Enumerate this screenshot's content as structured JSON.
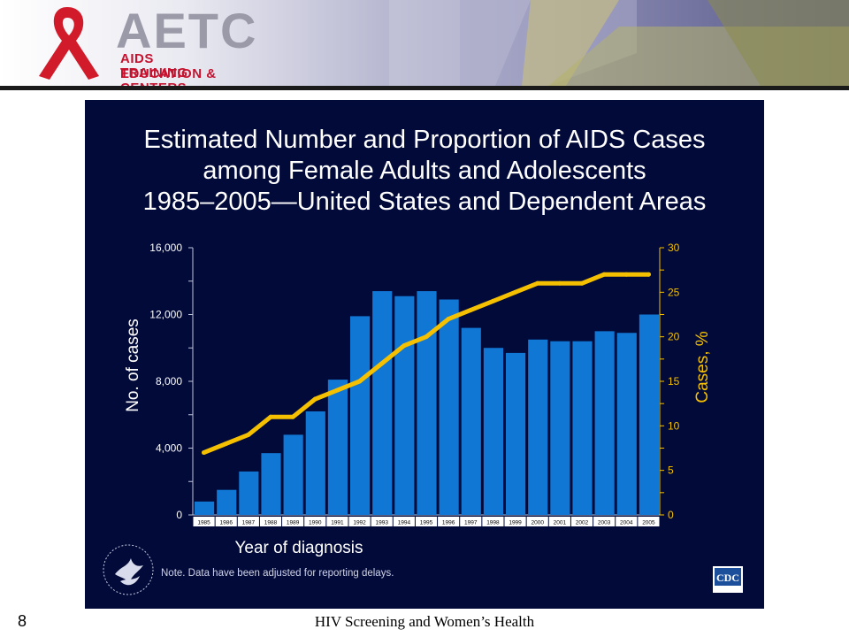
{
  "header": {
    "logo": {
      "name": "AETC",
      "line1": "AIDS EDUCATION &",
      "line2": "TRAINING CENTERS"
    }
  },
  "slide": {
    "title_lines": [
      "Estimated Number and Proportion of AIDS Cases",
      "among Female Adults and Adolescents",
      "1985–2005—United States and Dependent Areas"
    ],
    "note": "Note. Data have been adjusted for reporting delays.",
    "seal_icon": "hhs-eagle-seal-icon",
    "cdc_logo": "CDC"
  },
  "chart_data": {
    "type": "bar",
    "categories": [
      "1985",
      "1986",
      "1987",
      "1988",
      "1989",
      "1990",
      "1991",
      "1992",
      "1993",
      "1994",
      "1995",
      "1996",
      "1997",
      "1998",
      "1999",
      "2000",
      "2001",
      "2002",
      "2003",
      "2004",
      "2005"
    ],
    "series": [
      {
        "axis": "left",
        "type": "bar",
        "values": [
          800,
          1500,
          2600,
          3700,
          4800,
          6200,
          8100,
          11900,
          13400,
          13100,
          13400,
          12900,
          11200,
          10000,
          9700,
          10500,
          10400,
          10400,
          11000,
          10900,
          12000
        ],
        "color": "#1177d4"
      },
      {
        "axis": "right",
        "type": "line",
        "values": [
          7,
          8,
          9,
          11,
          11,
          13,
          14,
          15,
          17,
          19,
          20,
          22,
          23,
          24,
          25,
          26,
          26,
          26,
          27,
          27,
          27
        ],
        "color": "#f5c000"
      }
    ],
    "xlabel": "Year of diagnosis",
    "ylabel": "No. of cases",
    "y2label": "Cases, %",
    "ylim": [
      0,
      16000
    ],
    "y2lim": [
      0,
      30
    ],
    "yticks": [
      "0",
      "4,000",
      "8,000",
      "12,000",
      "16,000"
    ],
    "y2ticks": [
      "0",
      "5",
      "10",
      "15",
      "20",
      "25",
      "30"
    ],
    "grid": false
  },
  "footer": {
    "slide_number": "8",
    "title": "HIV Screening and Women’s Health"
  }
}
